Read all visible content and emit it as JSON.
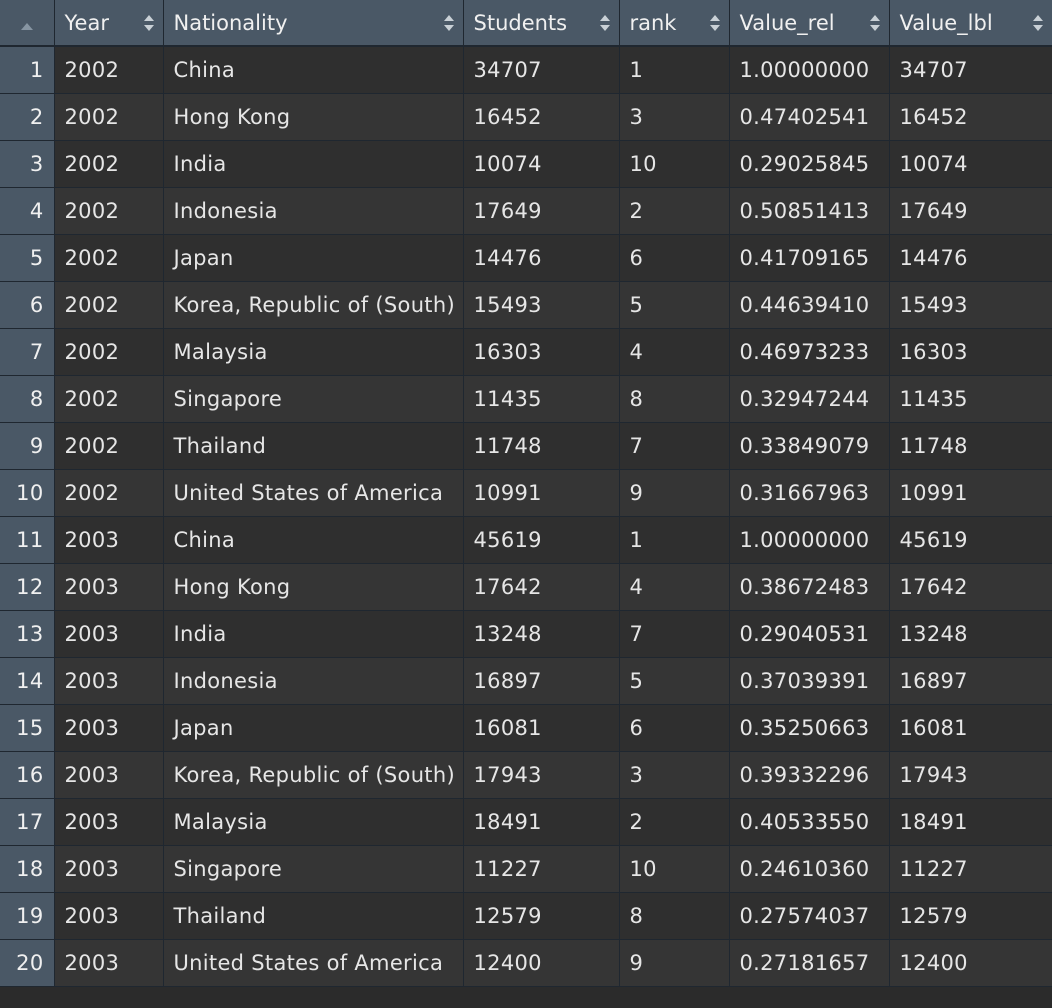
{
  "columns": [
    "Year",
    "Nationality",
    "Students",
    "rank",
    "Value_rel",
    "Value_lbl"
  ],
  "rows": [
    {
      "index": "1",
      "year": "2002",
      "nationality": "China",
      "students": "34707",
      "rank": "1",
      "value_rel": "1.00000000",
      "value_lbl": "34707"
    },
    {
      "index": "2",
      "year": "2002",
      "nationality": "Hong Kong",
      "students": "16452",
      "rank": "3",
      "value_rel": "0.47402541",
      "value_lbl": "16452"
    },
    {
      "index": "3",
      "year": "2002",
      "nationality": "India",
      "students": "10074",
      "rank": "10",
      "value_rel": "0.29025845",
      "value_lbl": "10074"
    },
    {
      "index": "4",
      "year": "2002",
      "nationality": "Indonesia",
      "students": "17649",
      "rank": "2",
      "value_rel": "0.50851413",
      "value_lbl": "17649"
    },
    {
      "index": "5",
      "year": "2002",
      "nationality": "Japan",
      "students": "14476",
      "rank": "6",
      "value_rel": "0.41709165",
      "value_lbl": "14476"
    },
    {
      "index": "6",
      "year": "2002",
      "nationality": "Korea, Republic of (South)",
      "students": "15493",
      "rank": "5",
      "value_rel": "0.44639410",
      "value_lbl": "15493"
    },
    {
      "index": "7",
      "year": "2002",
      "nationality": "Malaysia",
      "students": "16303",
      "rank": "4",
      "value_rel": "0.46973233",
      "value_lbl": "16303"
    },
    {
      "index": "8",
      "year": "2002",
      "nationality": "Singapore",
      "students": "11435",
      "rank": "8",
      "value_rel": "0.32947244",
      "value_lbl": "11435"
    },
    {
      "index": "9",
      "year": "2002",
      "nationality": "Thailand",
      "students": "11748",
      "rank": "7",
      "value_rel": "0.33849079",
      "value_lbl": "11748"
    },
    {
      "index": "10",
      "year": "2002",
      "nationality": "United States of America",
      "students": "10991",
      "rank": "9",
      "value_rel": "0.31667963",
      "value_lbl": "10991"
    },
    {
      "index": "11",
      "year": "2003",
      "nationality": "China",
      "students": "45619",
      "rank": "1",
      "value_rel": "1.00000000",
      "value_lbl": "45619"
    },
    {
      "index": "12",
      "year": "2003",
      "nationality": "Hong Kong",
      "students": "17642",
      "rank": "4",
      "value_rel": "0.38672483",
      "value_lbl": "17642"
    },
    {
      "index": "13",
      "year": "2003",
      "nationality": "India",
      "students": "13248",
      "rank": "7",
      "value_rel": "0.29040531",
      "value_lbl": "13248"
    },
    {
      "index": "14",
      "year": "2003",
      "nationality": "Indonesia",
      "students": "16897",
      "rank": "5",
      "value_rel": "0.37039391",
      "value_lbl": "16897"
    },
    {
      "index": "15",
      "year": "2003",
      "nationality": "Japan",
      "students": "16081",
      "rank": "6",
      "value_rel": "0.35250663",
      "value_lbl": "16081"
    },
    {
      "index": "16",
      "year": "2003",
      "nationality": "Korea, Republic of (South)",
      "students": "17943",
      "rank": "3",
      "value_rel": "0.39332296",
      "value_lbl": "17943"
    },
    {
      "index": "17",
      "year": "2003",
      "nationality": "Malaysia",
      "students": "18491",
      "rank": "2",
      "value_rel": "0.40533550",
      "value_lbl": "18491"
    },
    {
      "index": "18",
      "year": "2003",
      "nationality": "Singapore",
      "students": "11227",
      "rank": "10",
      "value_rel": "0.24610360",
      "value_lbl": "11227"
    },
    {
      "index": "19",
      "year": "2003",
      "nationality": "Thailand",
      "students": "12579",
      "rank": "8",
      "value_rel": "0.27574037",
      "value_lbl": "12579"
    },
    {
      "index": "20",
      "year": "2003",
      "nationality": "United States of America",
      "students": "12400",
      "rank": "9",
      "value_rel": "0.27181657",
      "value_lbl": "12400"
    }
  ]
}
